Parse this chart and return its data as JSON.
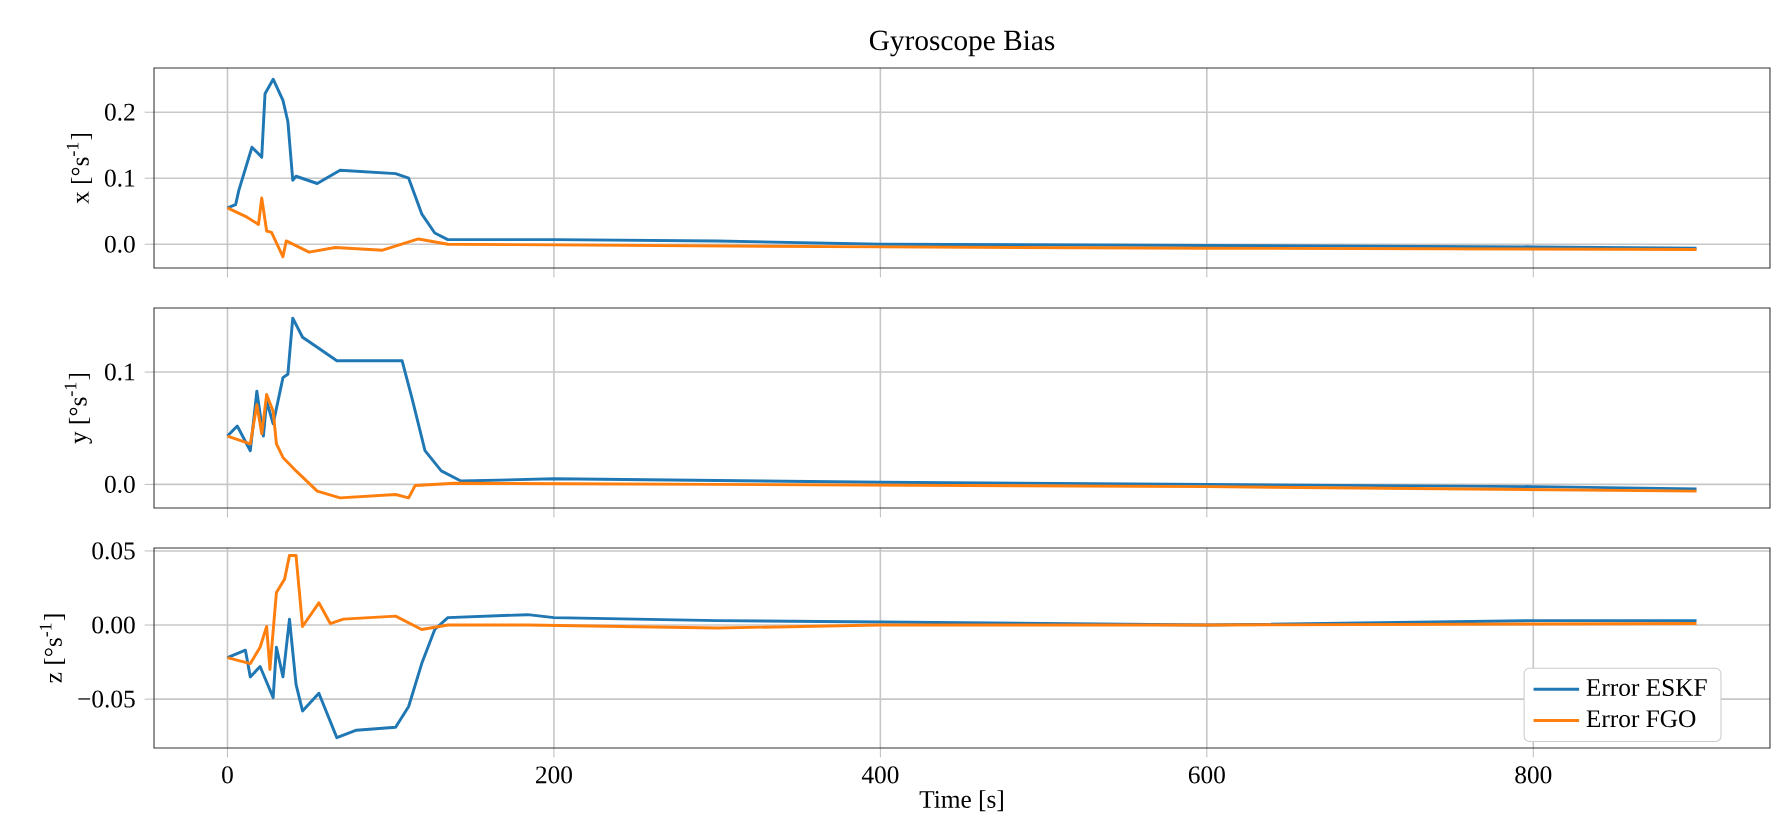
{
  "chart_data": [
    {
      "type": "line",
      "title": "Gyroscope Bias",
      "ylabel": "x [°s$^{-1}$]",
      "xlim": [
        -45,
        945
      ],
      "ylim": [
        -0.036,
        0.267
      ],
      "xticks": [
        0,
        200,
        400,
        600,
        800
      ],
      "yticks": [
        {
          "value": 0,
          "label": "0.0"
        },
        {
          "value": 0.1,
          "label": "0.1"
        },
        {
          "value": 0.2,
          "label": "0.2"
        }
      ],
      "grid": true,
      "tick_labels": "y",
      "series": [
        {
          "color": "#1f77b4",
          "x": [
            0,
            5,
            7,
            15,
            21,
            23,
            28,
            34,
            37,
            40,
            42,
            55,
            69,
            103,
            111,
            119,
            127,
            135,
            200,
            300,
            400,
            600,
            800,
            900
          ],
          "values": [
            0.055,
            0.06,
            0.082,
            0.147,
            0.132,
            0.228,
            0.25,
            0.218,
            0.186,
            0.097,
            0.103,
            0.092,
            0.112,
            0.107,
            0.1,
            0.046,
            0.017,
            0.007,
            0.007,
            0.005,
            0.0,
            -0.002,
            -0.004,
            -0.006
          ]
        },
        {
          "color": "#ff7f0e",
          "x": [
            0,
            12,
            19,
            21,
            24,
            27,
            34,
            36,
            50,
            66,
            95,
            117,
            135,
            200,
            400,
            600,
            900
          ],
          "values": [
            0.055,
            0.041,
            0.03,
            0.07,
            0.02,
            0.018,
            -0.019,
            0.005,
            -0.012,
            -0.005,
            -0.009,
            0.008,
            0.0,
            -0.001,
            -0.004,
            -0.006,
            -0.008
          ]
        }
      ]
    },
    {
      "type": "line",
      "ylabel": "y [°s$^{-1}$]",
      "xlim": [
        -45,
        945
      ],
      "ylim": [
        -0.021,
        0.157
      ],
      "xticks": [
        0,
        200,
        400,
        600,
        800
      ],
      "yticks": [
        {
          "value": 0,
          "label": "0.0"
        },
        {
          "value": 0.1,
          "label": "0.1"
        }
      ],
      "grid": true,
      "tick_labels": "y",
      "series": [
        {
          "color": "#1f77b4",
          "x": [
            0,
            6,
            14,
            18,
            22,
            24,
            28,
            34,
            37,
            40,
            46,
            55,
            67,
            107,
            113,
            121,
            131,
            143,
            200,
            400,
            600,
            800,
            900
          ],
          "values": [
            0.043,
            0.052,
            0.03,
            0.083,
            0.043,
            0.074,
            0.054,
            0.095,
            0.098,
            0.148,
            0.131,
            0.122,
            0.11,
            0.11,
            0.077,
            0.03,
            0.012,
            0.003,
            0.005,
            0.002,
            0.0,
            -0.002,
            -0.004
          ]
        },
        {
          "color": "#ff7f0e",
          "x": [
            0,
            14,
            18,
            21,
            24,
            28,
            30,
            34,
            42,
            55,
            69,
            103,
            111,
            115,
            139,
            300,
            600,
            900
          ],
          "values": [
            0.043,
            0.036,
            0.071,
            0.045,
            0.08,
            0.065,
            0.036,
            0.024,
            0.012,
            -0.006,
            -0.012,
            -0.009,
            -0.012,
            -0.001,
            0.001,
            0.0,
            -0.002,
            -0.006
          ]
        }
      ]
    },
    {
      "type": "line",
      "ylabel": "z [°s$^{-1}$]",
      "xlabel": "Time [s]",
      "xlim": [
        -45,
        945
      ],
      "ylim": [
        -0.083,
        0.052
      ],
      "xticks": [
        0,
        200,
        400,
        600,
        800
      ],
      "yticks": [
        {
          "value": -0.05,
          "label": "−0.05"
        },
        {
          "value": 0,
          "label": "0.00"
        },
        {
          "value": 0.05,
          "label": "0.05"
        }
      ],
      "grid": true,
      "legend": "bottom right",
      "series": [
        {
          "name": "Error ESKF",
          "color": "#1f77b4",
          "x": [
            0,
            11,
            14,
            20,
            28,
            30,
            34,
            38,
            42,
            46,
            56,
            67,
            79,
            103,
            111,
            119,
            127,
            135,
            184,
            200,
            300,
            400,
            600,
            800,
            900
          ],
          "values": [
            -0.022,
            -0.017,
            -0.035,
            -0.028,
            -0.049,
            -0.015,
            -0.035,
            0.004,
            -0.04,
            -0.058,
            -0.046,
            -0.076,
            -0.071,
            -0.069,
            -0.055,
            -0.026,
            -0.003,
            0.005,
            0.007,
            0.005,
            0.003,
            0.002,
            0.0,
            0.003,
            0.003
          ]
        },
        {
          "name": "Error FGO",
          "color": "#ff7f0e",
          "x": [
            0,
            14,
            20,
            24,
            26,
            30,
            35,
            38,
            42,
            46,
            56,
            63,
            71,
            103,
            119,
            135,
            184,
            300,
            400,
            600,
            900
          ],
          "values": [
            -0.022,
            -0.026,
            -0.015,
            -0.001,
            -0.03,
            0.022,
            0.031,
            0.047,
            0.047,
            -0.001,
            0.015,
            0.001,
            0.004,
            0.006,
            -0.003,
            0.0,
            0.0,
            -0.002,
            0.0,
            0.0,
            0.001
          ]
        }
      ]
    }
  ]
}
